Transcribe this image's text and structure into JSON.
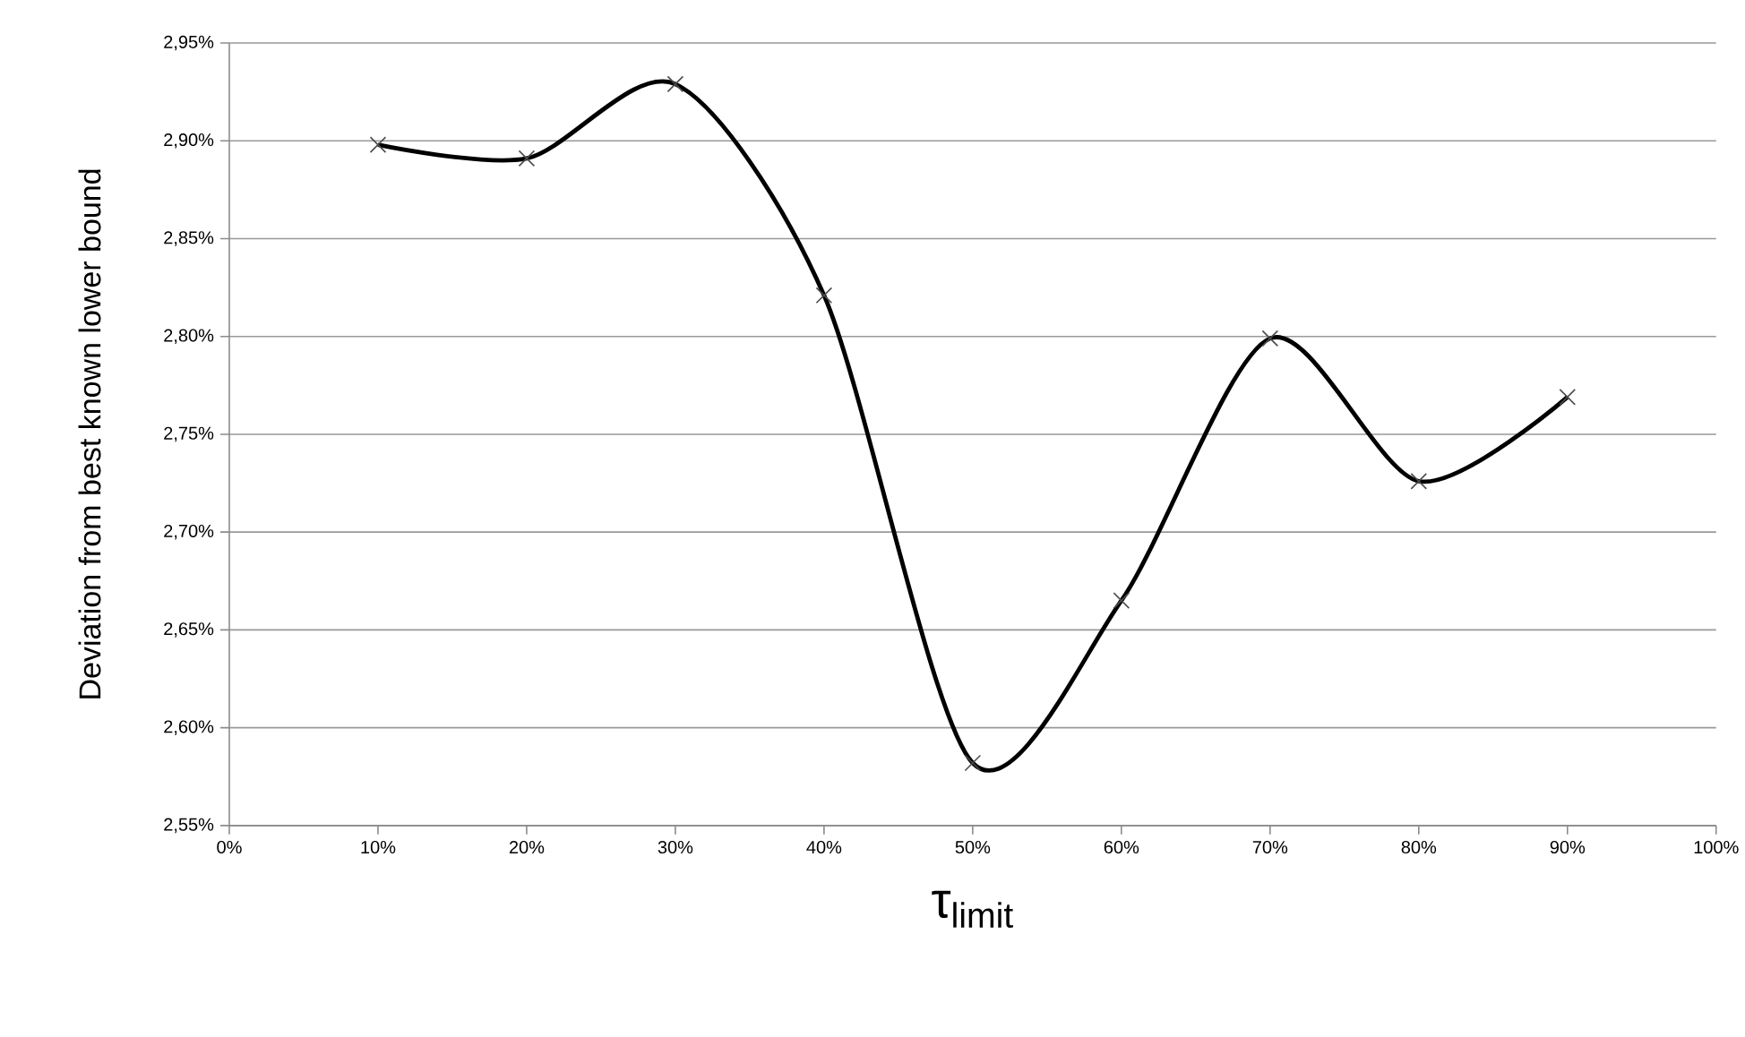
{
  "chart_data": {
    "type": "line",
    "xlabel": "τ$_{limit}$",
    "ylabel": "Deviation from best known lower bound",
    "x": [
      10,
      20,
      30,
      40,
      50,
      60,
      70,
      80,
      90
    ],
    "series": [
      {
        "color": "#000000",
        "values": [
          2.898,
          2.891,
          2.929,
          2.821,
          2.582,
          2.665,
          2.799,
          2.726,
          2.769
        ]
      }
    ],
    "xlim": [
      0,
      100
    ],
    "xticks": [
      {
        "value": 0,
        "label": "0%"
      },
      {
        "value": 10,
        "label": "10%"
      },
      {
        "value": 20,
        "label": "20%"
      },
      {
        "value": 30,
        "label": "30%"
      },
      {
        "value": 40,
        "label": "40%"
      },
      {
        "value": 50,
        "label": "50%"
      },
      {
        "value": 60,
        "label": "60%"
      },
      {
        "value": 70,
        "label": "70%"
      },
      {
        "value": 80,
        "label": "80%"
      },
      {
        "value": 90,
        "label": "90%"
      },
      {
        "value": 100,
        "label": "100%"
      }
    ],
    "ylim": [
      2.55,
      2.95
    ],
    "yticks": [
      {
        "value": 2.55,
        "label": "2,55%"
      },
      {
        "value": 2.6,
        "label": "2,60%"
      },
      {
        "value": 2.65,
        "label": "2,65%"
      },
      {
        "value": 2.7,
        "label": "2,70%"
      },
      {
        "value": 2.75,
        "label": "2,75%"
      },
      {
        "value": 2.8,
        "label": "2,80%"
      },
      {
        "value": 2.85,
        "label": "2,85%"
      },
      {
        "value": 2.9,
        "label": "2,90%"
      },
      {
        "value": 2.95,
        "label": "2,95%"
      }
    ],
    "grid": "y",
    "marker": "cross",
    "line_style": "solid"
  }
}
